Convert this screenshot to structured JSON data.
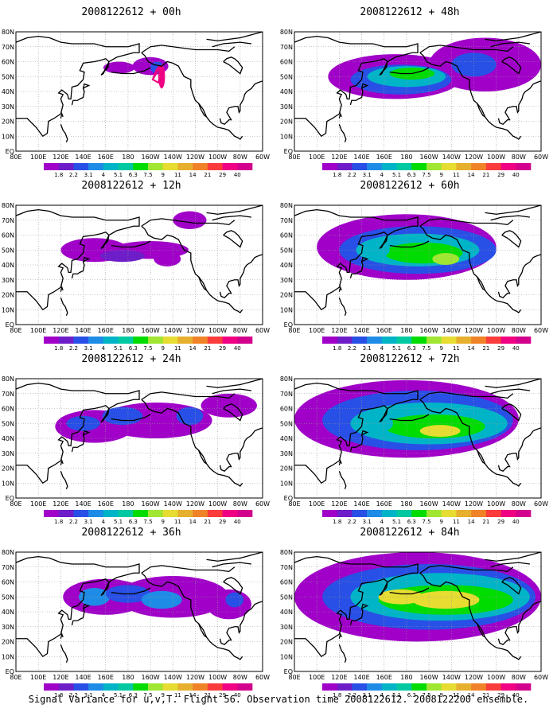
{
  "panels": [
    {
      "title": "2008122612 + 00h",
      "lead": 0
    },
    {
      "title": "2008122612 + 12h",
      "lead": 12
    },
    {
      "title": "2008122612 + 24h",
      "lead": 24
    },
    {
      "title": "2008122612 + 36h",
      "lead": 36
    },
    {
      "title": "2008122612 + 48h",
      "lead": 48
    },
    {
      "title": "2008122612 + 60h",
      "lead": 60
    },
    {
      "title": "2008122612 + 72h",
      "lead": 72
    },
    {
      "title": "2008122612 + 84h",
      "lead": 84
    }
  ],
  "lat_labels": [
    "EQ",
    "10N",
    "20N",
    "30N",
    "40N",
    "50N",
    "60N",
    "70N",
    "80N"
  ],
  "lon_labels": [
    "80E",
    "100E",
    "120E",
    "140E",
    "160E",
    "180",
    "160W",
    "140W",
    "120W",
    "100W",
    "80W",
    "60W"
  ],
  "colorbar": {
    "labels": [
      "1.8",
      "2.2",
      "3.1",
      "4",
      "5.1",
      "6.3",
      "7.5",
      "9",
      "11",
      "14",
      "21",
      "29",
      "40"
    ],
    "colors": [
      "#a000c8",
      "#6e1ec8",
      "#2850e6",
      "#1e8ce6",
      "#00b4c8",
      "#00c8a0",
      "#00dc00",
      "#a0e632",
      "#e6dc32",
      "#e6af2d",
      "#f08228",
      "#fa3c3c",
      "#f00082",
      "#d2008c"
    ]
  },
  "caption": "Signal Variance for u,v,T. Flight 56. Observation time 2008122612. 2008122200 ensemble."
}
